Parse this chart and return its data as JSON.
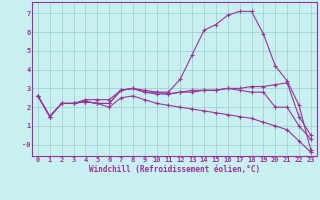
{
  "xlabel": "Windchill (Refroidissement éolien,°C)",
  "bg_color": "#c8f0f0",
  "line_color": "#993399",
  "grid_color": "#99cccc",
  "ylim": [
    -0.6,
    7.6
  ],
  "xlim": [
    -0.5,
    23.5
  ],
  "series": {
    "line1": [
      2.6,
      1.5,
      2.2,
      2.2,
      2.3,
      2.2,
      2.2,
      2.9,
      3.0,
      2.9,
      2.8,
      2.8,
      3.5,
      4.8,
      6.1,
      6.4,
      6.9,
      7.1,
      7.1,
      5.9,
      4.2,
      3.4,
      2.1,
      -0.3
    ],
    "line2": [
      2.6,
      1.5,
      2.2,
      2.2,
      2.3,
      2.2,
      2.2,
      2.9,
      3.0,
      2.8,
      2.7,
      2.7,
      2.8,
      2.9,
      2.9,
      2.9,
      3.0,
      3.0,
      3.1,
      3.1,
      3.2,
      3.3,
      1.5,
      0.5
    ],
    "line3": [
      2.6,
      1.5,
      2.2,
      2.2,
      2.3,
      2.2,
      2.0,
      2.5,
      2.6,
      2.4,
      2.2,
      2.1,
      2.0,
      1.9,
      1.8,
      1.7,
      1.6,
      1.5,
      1.4,
      1.2,
      1.0,
      0.8,
      0.2,
      -0.4
    ],
    "line4": [
      2.6,
      1.5,
      2.2,
      2.2,
      2.4,
      2.4,
      2.4,
      2.9,
      3.0,
      2.8,
      2.8,
      2.7,
      2.8,
      2.8,
      2.9,
      2.9,
      3.0,
      2.9,
      2.8,
      2.8,
      2.0,
      2.0,
      1.0,
      0.3
    ]
  },
  "ytick_vals": [
    0,
    1,
    2,
    3,
    4,
    5,
    6,
    7
  ],
  "ytick_labels": [
    "-0",
    "1",
    "2",
    "3",
    "4",
    "5",
    "6",
    "7"
  ],
  "xtick_labels": [
    "0",
    "1",
    "2",
    "3",
    "4",
    "5",
    "6",
    "7",
    "8",
    "9",
    "10",
    "11",
    "12",
    "13",
    "14",
    "15",
    "16",
    "17",
    "18",
    "19",
    "20",
    "21",
    "22",
    "23"
  ],
  "tick_color": "#993399",
  "spine_color": "#993399",
  "label_fontsize": 5.5,
  "tick_fontsize": 5.0
}
